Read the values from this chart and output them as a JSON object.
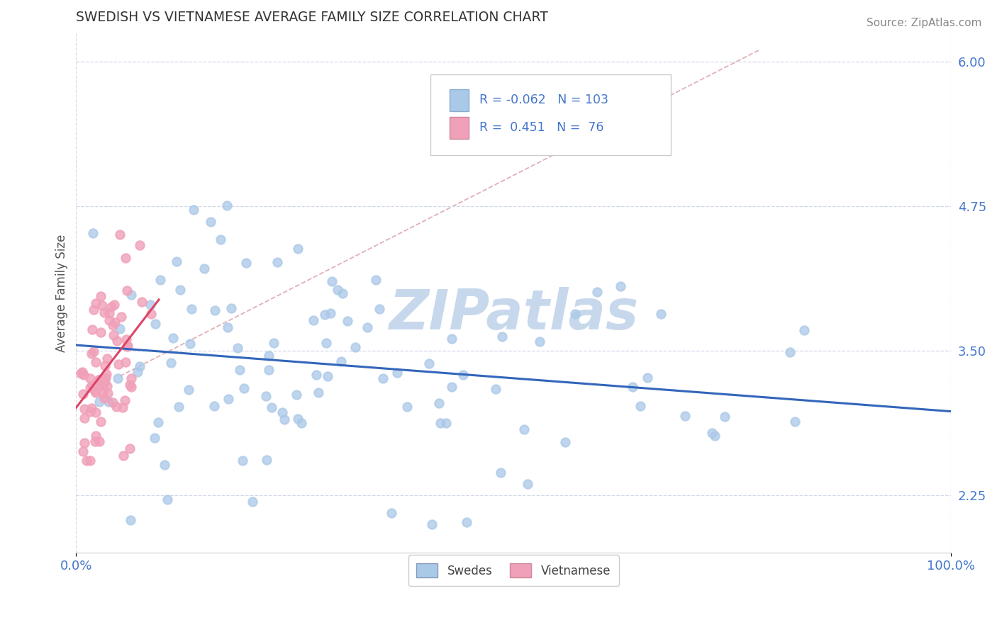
{
  "title": "SWEDISH VS VIETNAMESE AVERAGE FAMILY SIZE CORRELATION CHART",
  "source_text": "Source: ZipAtlas.com",
  "ylabel": "Average Family Size",
  "xlim": [
    0.0,
    1.0
  ],
  "ylim": [
    1.75,
    6.25
  ],
  "yticks": [
    2.25,
    3.5,
    4.75,
    6.0
  ],
  "xtick_labels": [
    "0.0%",
    "100.0%"
  ],
  "background_color": "#ffffff",
  "grid_color": "#d0d8e8",
  "legend_R1": "-0.062",
  "legend_N1": "103",
  "legend_R2": "0.451",
  "legend_N2": "76",
  "legend_label1": "Swedes",
  "legend_label2": "Vietnamese",
  "scatter_color_1": "#aac8e8",
  "scatter_color_2": "#f0a0b8",
  "line_color_1": "#3366bb",
  "line_color_2": "#dd4466",
  "ref_line_color": "#e0b0b8",
  "watermark_text": "ZIPatlas",
  "watermark_color": "#c8d8ec",
  "title_color": "#333333",
  "axis_color": "#4477cc",
  "seed": 42
}
